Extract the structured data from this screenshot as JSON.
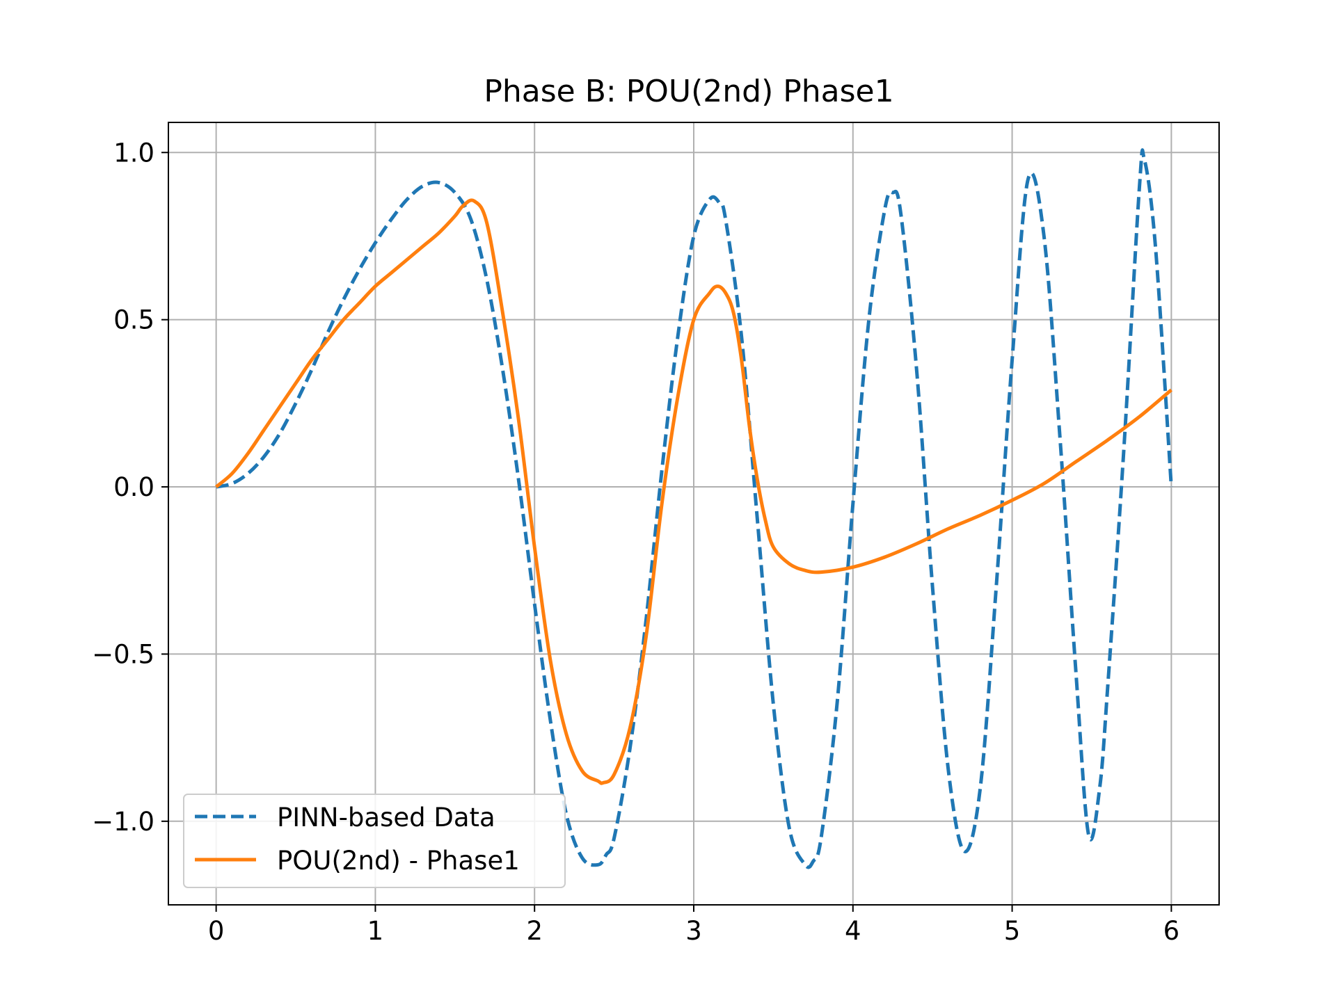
{
  "chart_data": {
    "type": "line",
    "title": "Phase B: POU(2nd) Phase1",
    "xlabel": "",
    "ylabel": "",
    "xlim": [
      -0.3,
      6.3
    ],
    "ylim": [
      -1.25,
      1.09
    ],
    "x_ticks": [
      0,
      1,
      2,
      3,
      4,
      5,
      6
    ],
    "x_tick_labels": [
      "0",
      "1",
      "2",
      "3",
      "4",
      "5",
      "6"
    ],
    "y_ticks": [
      1.0,
      0.5,
      0.0,
      -0.5,
      -1.0
    ],
    "y_tick_labels": [
      "1.0",
      "0.5",
      "0.0",
      "−0.5",
      "−1.0"
    ],
    "grid": true,
    "legend_position": "lower-left",
    "series": [
      {
        "name": "PINN-based Data",
        "color": "#1f77b4",
        "style": "dashed",
        "x": [
          0,
          0.1,
          0.2,
          0.3,
          0.4,
          0.5,
          0.6,
          0.7,
          0.8,
          0.9,
          1.0,
          1.1,
          1.2,
          1.3,
          1.4,
          1.5,
          1.6,
          1.7,
          1.8,
          1.9,
          2.0,
          2.1,
          2.2,
          2.3,
          2.4,
          2.45,
          2.5,
          2.6,
          2.7,
          2.8,
          2.9,
          3.0,
          3.1,
          3.16,
          3.2,
          3.3,
          3.4,
          3.5,
          3.6,
          3.7,
          3.75,
          3.8,
          3.9,
          4.0,
          4.1,
          4.2,
          4.25,
          4.3,
          4.4,
          4.5,
          4.6,
          4.7,
          4.8,
          4.9,
          5.0,
          5.1,
          5.2,
          5.3,
          5.4,
          5.48,
          5.55,
          5.6,
          5.7,
          5.8,
          5.83,
          5.9,
          6.0
        ],
        "y": [
          0.0,
          0.01,
          0.04,
          0.09,
          0.16,
          0.25,
          0.35,
          0.46,
          0.56,
          0.65,
          0.73,
          0.8,
          0.86,
          0.9,
          0.91,
          0.88,
          0.8,
          0.62,
          0.35,
          0.02,
          -0.35,
          -0.7,
          -0.98,
          -1.11,
          -1.13,
          -1.1,
          -1.05,
          -0.78,
          -0.4,
          0.05,
          0.45,
          0.75,
          0.86,
          0.85,
          0.8,
          0.45,
          -0.1,
          -0.65,
          -1.02,
          -1.13,
          -1.12,
          -1.05,
          -0.65,
          -0.05,
          0.5,
          0.83,
          0.88,
          0.82,
          0.35,
          -0.3,
          -0.85,
          -1.09,
          -0.9,
          -0.3,
          0.38,
          0.92,
          0.75,
          0.15,
          -0.55,
          -1.04,
          -0.9,
          -0.6,
          0.1,
          0.9,
          0.98,
          0.72,
          0.0
        ]
      },
      {
        "name": "POU(2nd) - Phase1",
        "color": "#ff7f0e",
        "style": "solid",
        "x": [
          0,
          0.1,
          0.2,
          0.3,
          0.4,
          0.5,
          0.6,
          0.7,
          0.8,
          0.9,
          1.0,
          1.1,
          1.2,
          1.3,
          1.4,
          1.5,
          1.55,
          1.62,
          1.7,
          1.8,
          1.9,
          2.0,
          2.1,
          2.2,
          2.3,
          2.4,
          2.43,
          2.5,
          2.6,
          2.7,
          2.8,
          2.9,
          3.0,
          3.1,
          3.15,
          3.2,
          3.25,
          3.3,
          3.35,
          3.4,
          3.45,
          3.5,
          3.6,
          3.7,
          3.8,
          4.0,
          4.2,
          4.4,
          4.6,
          4.8,
          5.0,
          5.2,
          5.4,
          5.6,
          5.8,
          6.0
        ],
        "y": [
          0.0,
          0.04,
          0.1,
          0.17,
          0.24,
          0.31,
          0.38,
          0.44,
          0.5,
          0.55,
          0.6,
          0.64,
          0.68,
          0.72,
          0.76,
          0.81,
          0.84,
          0.855,
          0.79,
          0.52,
          0.2,
          -0.18,
          -0.52,
          -0.74,
          -0.85,
          -0.88,
          -0.885,
          -0.86,
          -0.72,
          -0.45,
          -0.05,
          0.27,
          0.5,
          0.58,
          0.6,
          0.58,
          0.52,
          0.38,
          0.18,
          0.02,
          -0.1,
          -0.18,
          -0.23,
          -0.25,
          -0.255,
          -0.24,
          -0.21,
          -0.17,
          -0.125,
          -0.085,
          -0.04,
          0.01,
          0.075,
          0.14,
          0.21,
          0.29
        ]
      }
    ]
  }
}
